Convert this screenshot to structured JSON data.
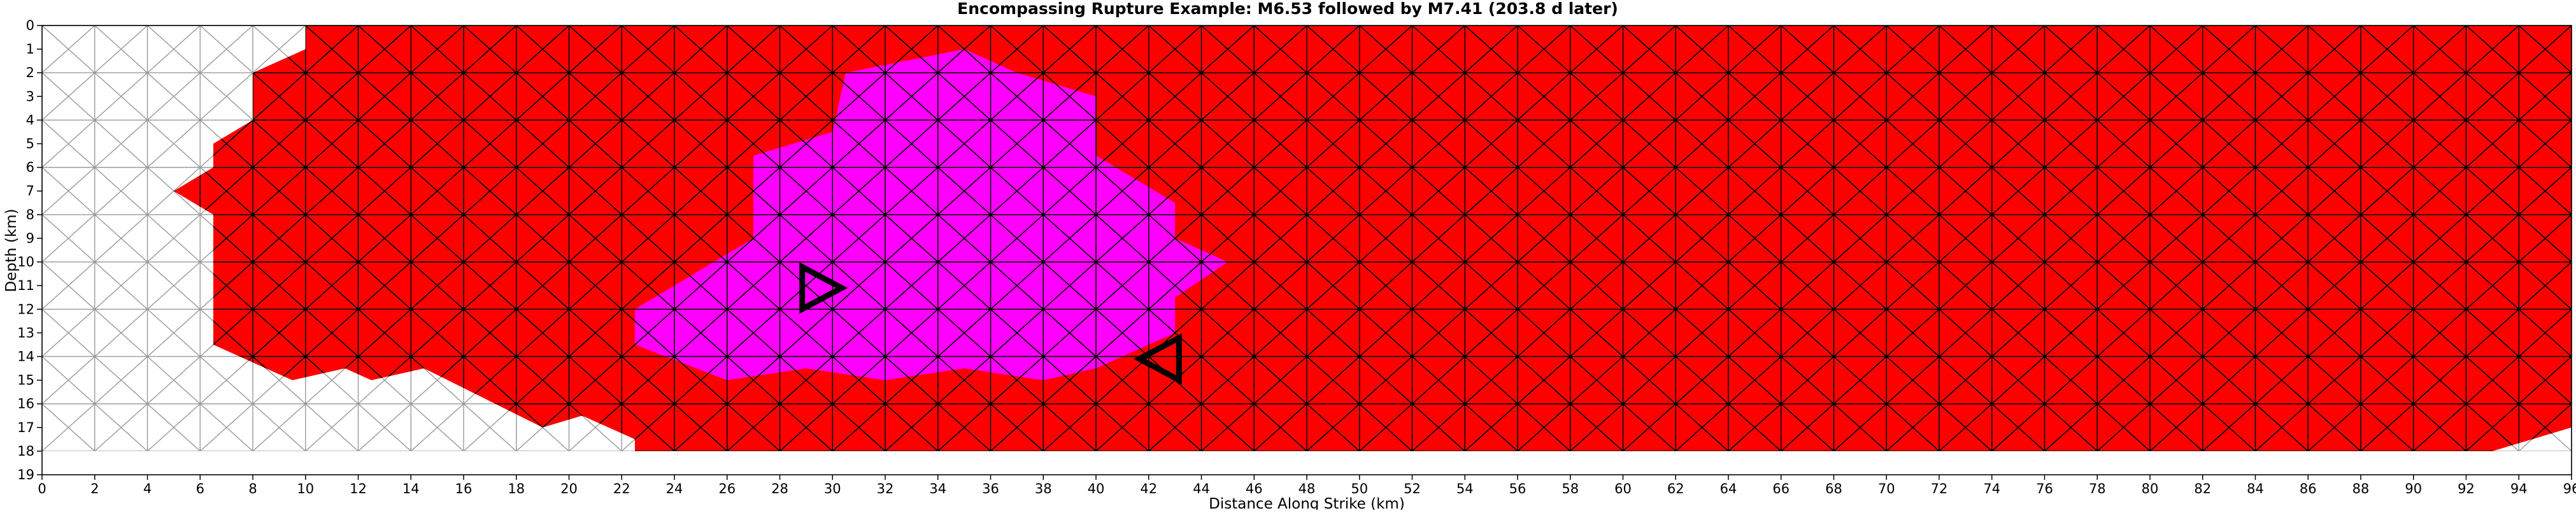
{
  "chart_data": {
    "type": "heatmap",
    "title": "Encompassing Rupture Example: M6.53 followed by M7.41 (203.8 d later)",
    "xlabel": "Distance Along Strike (km)",
    "ylabel": "Depth (km)",
    "xlim": [
      0,
      96
    ],
    "ylim": [
      19,
      0
    ],
    "x_ticks": [
      "0",
      "2",
      "4",
      "6",
      "8",
      "10",
      "12",
      "14",
      "16",
      "18",
      "20",
      "22",
      "24",
      "26",
      "28",
      "30",
      "32",
      "34",
      "36",
      "38",
      "40",
      "42",
      "44",
      "46",
      "48",
      "50",
      "52",
      "54",
      "56",
      "58",
      "60",
      "62",
      "64",
      "66",
      "68",
      "70",
      "72",
      "74",
      "76",
      "78",
      "80",
      "82",
      "84",
      "86",
      "88",
      "90",
      "92",
      "94",
      "96"
    ],
    "y_ticks": [
      "0",
      "1",
      "2",
      "3",
      "4",
      "5",
      "6",
      "7",
      "8",
      "9",
      "10",
      "11",
      "12",
      "13",
      "14",
      "15",
      "16",
      "17",
      "18",
      "19"
    ],
    "mesh": "triangular fault mesh",
    "colors": {
      "first_rupture": "#ff00ff",
      "second_rupture": "#ff0000",
      "unruptured": "#ffffff",
      "edge_ruptured": "#000000",
      "edge_unruptured": "#999999"
    },
    "ruptures": [
      {
        "magnitude": "M7.41",
        "color": "#ff0000",
        "outline_km": [
          [
            10,
            0
          ],
          [
            96,
            0
          ],
          [
            96,
            17
          ],
          [
            93,
            18
          ],
          [
            22.5,
            18
          ],
          [
            22.5,
            17.5
          ],
          [
            20.5,
            16.5
          ],
          [
            19,
            17
          ],
          [
            14.5,
            14.5
          ],
          [
            12.5,
            15
          ],
          [
            11.5,
            14.5
          ],
          [
            9.5,
            15
          ],
          [
            6.5,
            13.5
          ],
          [
            6.5,
            8
          ],
          [
            5,
            7
          ],
          [
            6.5,
            6
          ],
          [
            6.5,
            5
          ],
          [
            8,
            4
          ],
          [
            8,
            2
          ],
          [
            10,
            1
          ]
        ]
      },
      {
        "magnitude": "M6.53",
        "color": "#ff00ff",
        "outline_km": [
          [
            30.5,
            2
          ],
          [
            35,
            1
          ],
          [
            37,
            2
          ],
          [
            40,
            3
          ],
          [
            40,
            5.5
          ],
          [
            43,
            7.5
          ],
          [
            43,
            9
          ],
          [
            45,
            10
          ],
          [
            43,
            11.5
          ],
          [
            43,
            13
          ],
          [
            40,
            14.5
          ],
          [
            38,
            15
          ],
          [
            35,
            14.5
          ],
          [
            32,
            15
          ],
          [
            29,
            14.5
          ],
          [
            26,
            15
          ],
          [
            22.5,
            13.5
          ],
          [
            22.5,
            12
          ],
          [
            27,
            9
          ],
          [
            27,
            5.5
          ],
          [
            30,
            4.5
          ]
        ]
      }
    ],
    "hypocenters": [
      {
        "event": "M6.53",
        "x_km": 29.6,
        "depth_km": 11.1,
        "direction": "right"
      },
      {
        "event": "M7.41",
        "x_km": 42.4,
        "depth_km": 14.1,
        "direction": "left"
      }
    ]
  }
}
